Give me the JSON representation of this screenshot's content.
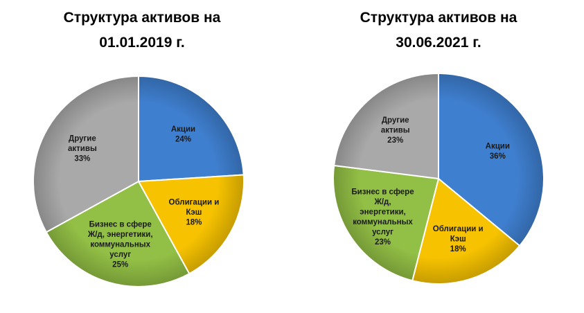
{
  "chart_data": [
    {
      "type": "pie",
      "title_lines": [
        "Структура активов на",
        "01.01.2019 г."
      ],
      "slices": [
        {
          "label_lines": [
            "Акции"
          ],
          "value": 24,
          "value_label": "24%",
          "color": "#3f7fcf"
        },
        {
          "label_lines": [
            "Облигации и",
            "Кэш"
          ],
          "value": 18,
          "value_label": "18%",
          "color": "#f7c300"
        },
        {
          "label_lines": [
            "Бизнес в сфере",
            "Ж/д, энергетики,",
            "коммунальных",
            "услуг"
          ],
          "value": 25,
          "value_label": "25%",
          "color": "#92bf45"
        },
        {
          "label_lines": [
            "Другие",
            "активы"
          ],
          "value": 33,
          "value_label": "33%",
          "color": "#a9a9a9"
        }
      ]
    },
    {
      "type": "pie",
      "title_lines": [
        "Структура активов на",
        "30.06.2021 г."
      ],
      "slices": [
        {
          "label_lines": [
            "Акции"
          ],
          "value": 36,
          "value_label": "36%",
          "color": "#3f7fcf"
        },
        {
          "label_lines": [
            "Облигации и",
            "Кэш"
          ],
          "value": 18,
          "value_label": "18%",
          "color": "#f7c300"
        },
        {
          "label_lines": [
            "Бизнес в сфере",
            "Ж/д,",
            "энергетики,",
            "коммунальных",
            "услуг"
          ],
          "value": 23,
          "value_label": "23%",
          "color": "#92bf45"
        },
        {
          "label_lines": [
            "Другие",
            "активы"
          ],
          "value": 23,
          "value_label": "23%",
          "color": "#a9a9a9"
        }
      ]
    }
  ]
}
